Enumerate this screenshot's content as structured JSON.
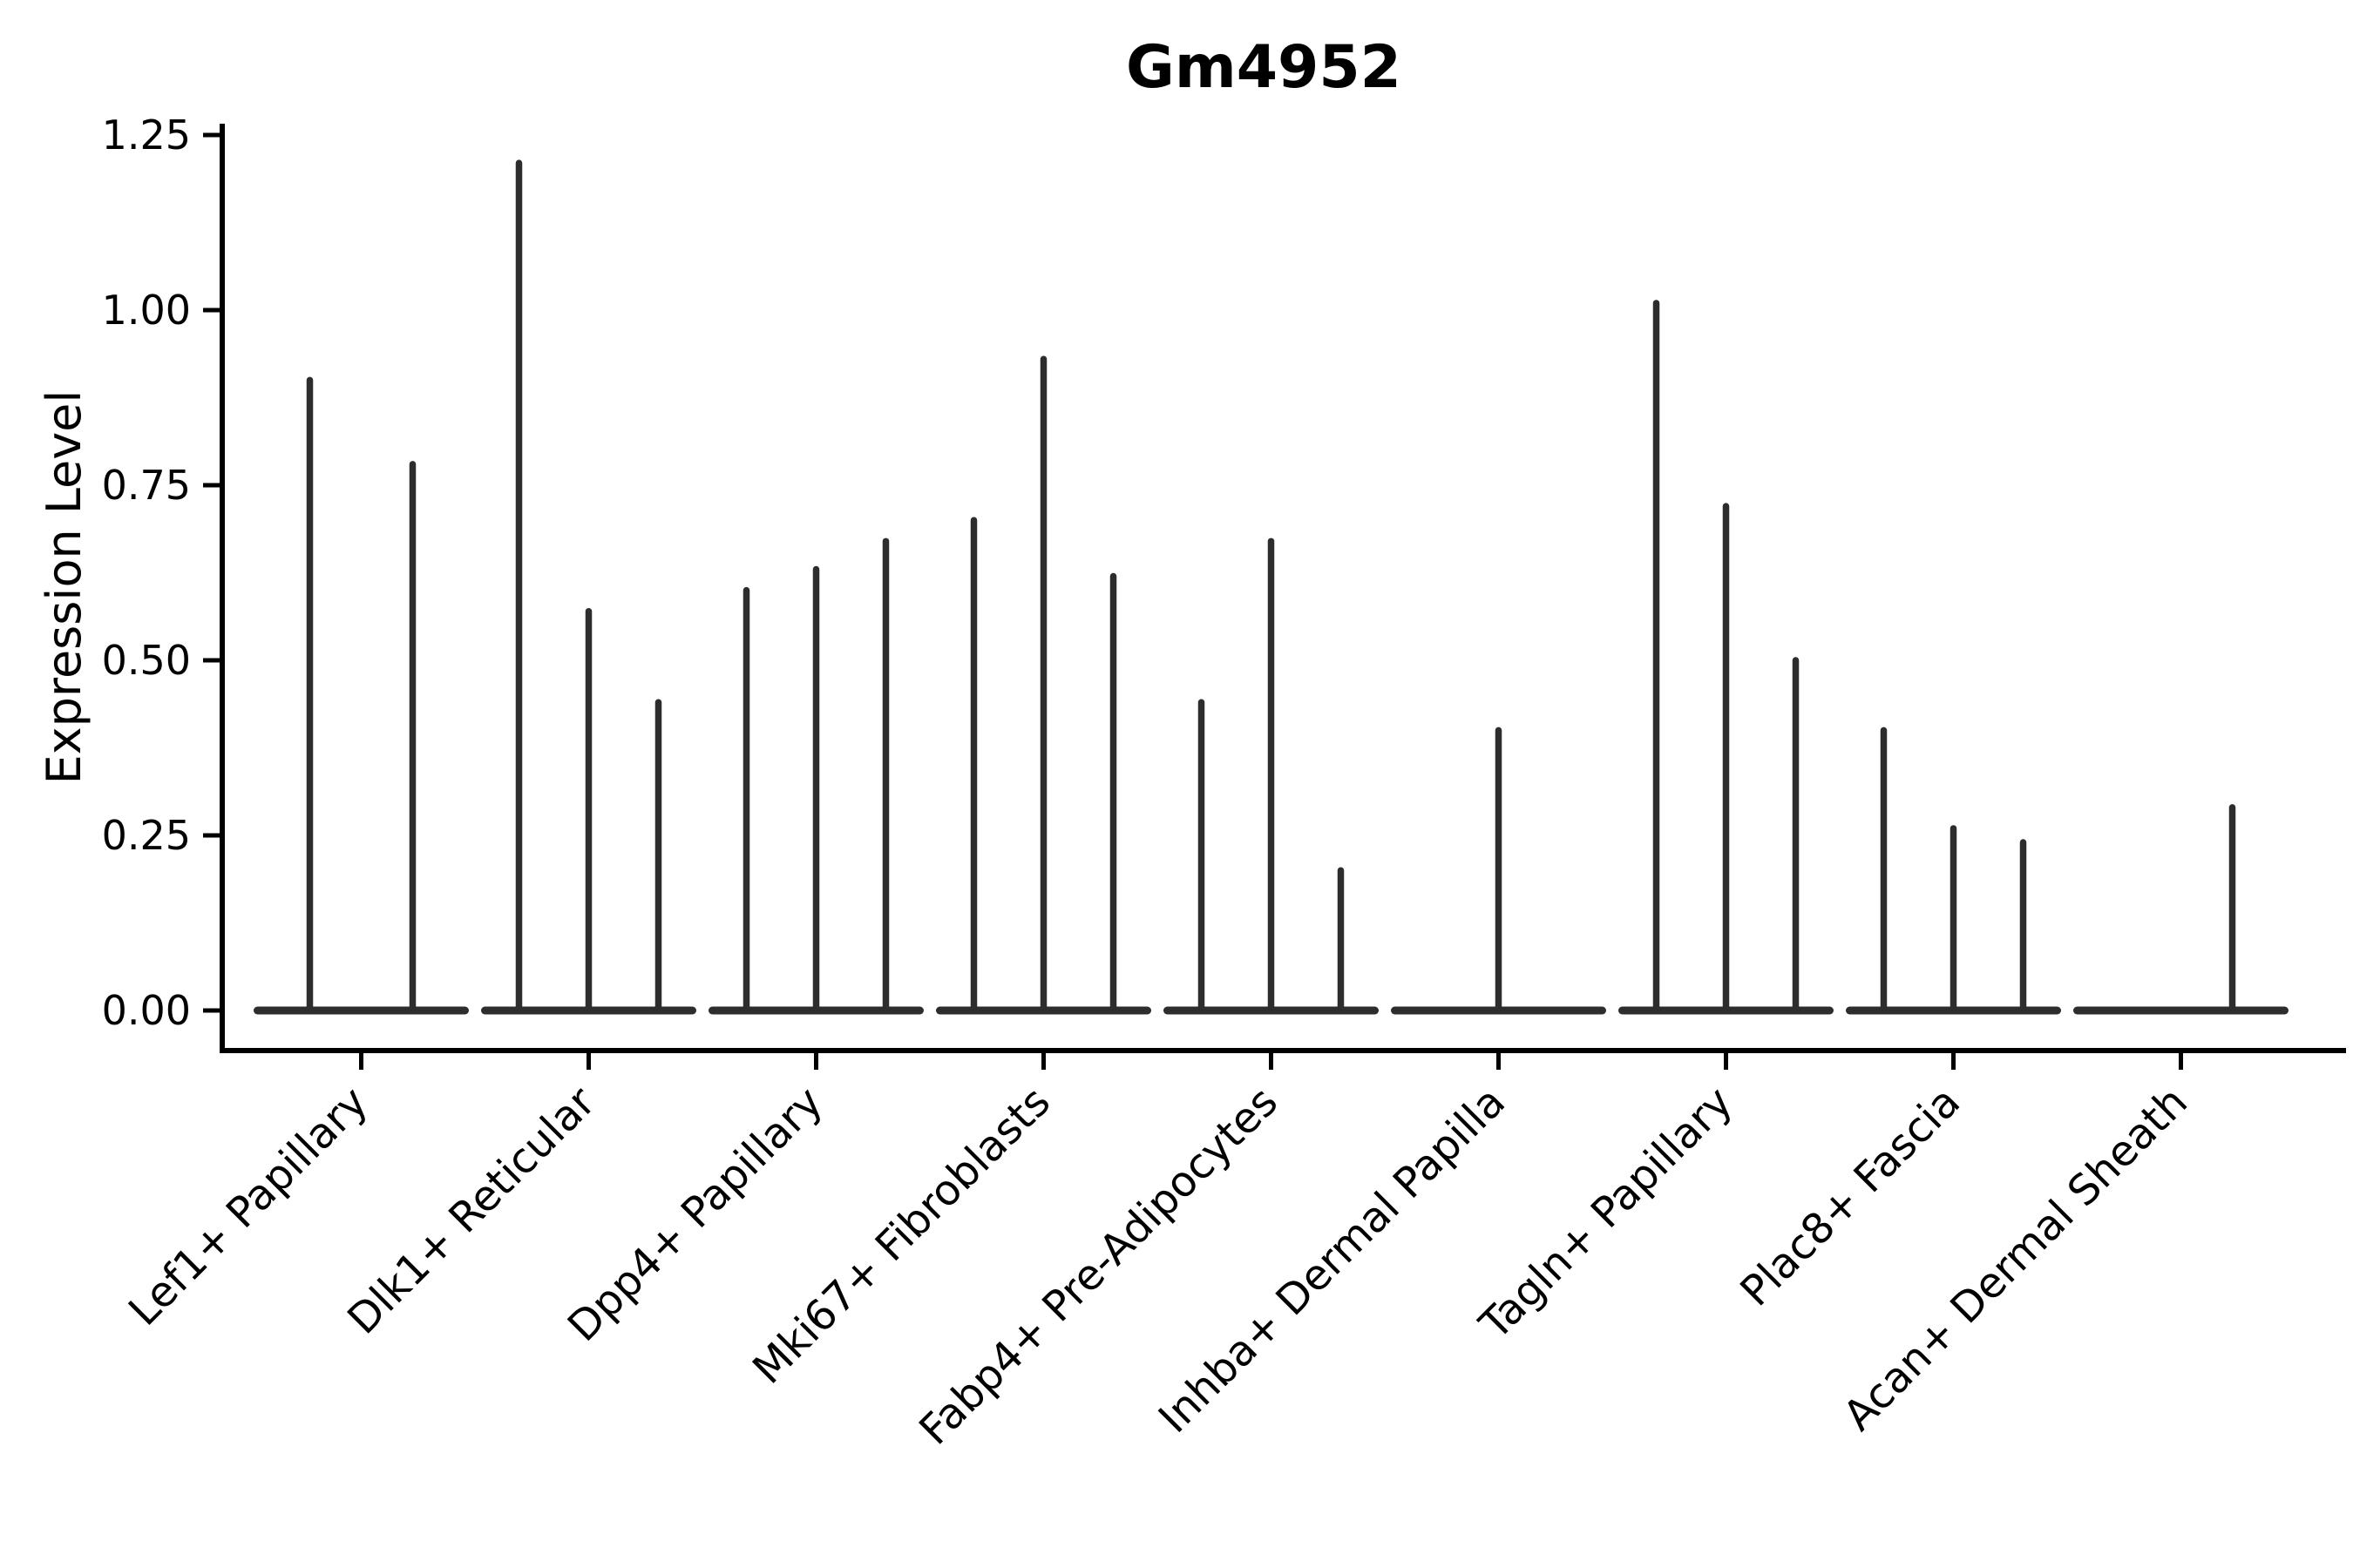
{
  "title": "Gm4952",
  "axes": {
    "ylabel": "Expression Level",
    "y_tick_labels": [
      "0.00",
      "0.25",
      "0.50",
      "0.75",
      "1.00",
      "1.25"
    ]
  },
  "colors": {
    "violin_line": "#2d2d2d",
    "axis_line": "#000000",
    "text": "#000000",
    "background": "#ffffff"
  },
  "chart_data": {
    "type": "violin",
    "title": "Gm4952",
    "xlabel": "",
    "ylabel": "Expression Level",
    "ylim": [
      0,
      1.25
    ],
    "y_ticks": [
      0,
      0.25,
      0.5,
      0.75,
      1.0,
      1.25
    ],
    "y_tick_labels": [
      "0.00",
      "0.25",
      "0.50",
      "0.75",
      "1.00",
      "1.25"
    ],
    "grid": false,
    "legend": "none",
    "description": "Violin plot of Gm4952 expression; each cell-type group shows 1-3 extremely narrow split violins (flat base at 0 with a thin spike up to the maximum expression value).",
    "categories": [
      "Lef1+ Papillary",
      "Dlk1+ Reticular",
      "Dpp4+ Papillary",
      "Mki67+ Fibroblasts",
      "Fabp4+ Pre-Adipocytes",
      "Inhba+ Dermal Papilla",
      "Tagln+ Papillary",
      "Plac8+ Fascia",
      "Acan+ Dermal Sheath"
    ],
    "groups": [
      {
        "label": "Lef1+ Papillary",
        "violins": [
          {
            "offset": -59,
            "max": 0.9
          },
          {
            "offset": 59,
            "max": 0.78
          }
        ]
      },
      {
        "label": "Dlk1+ Reticular",
        "violins": [
          {
            "offset": -80,
            "max": 1.21
          },
          {
            "offset": 0,
            "max": 0.57
          },
          {
            "offset": 80,
            "max": 0.44
          }
        ]
      },
      {
        "label": "Dpp4+ Papillary",
        "violins": [
          {
            "offset": -80,
            "max": 0.6
          },
          {
            "offset": 0,
            "max": 0.63
          },
          {
            "offset": 80,
            "max": 0.67
          }
        ]
      },
      {
        "label": "Mki67+ Fibroblasts",
        "violins": [
          {
            "offset": -80,
            "max": 0.7
          },
          {
            "offset": 0,
            "max": 0.93
          },
          {
            "offset": 80,
            "max": 0.62
          }
        ]
      },
      {
        "label": "Fabp4+ Pre-Adipocytes",
        "violins": [
          {
            "offset": -80,
            "max": 0.44
          },
          {
            "offset": 0,
            "max": 0.67
          },
          {
            "offset": 80,
            "max": 0.2
          }
        ]
      },
      {
        "label": "Inhba+ Dermal Papilla",
        "violins": [
          {
            "offset": 0,
            "max": 0.4
          }
        ]
      },
      {
        "label": "Tagln+ Papillary",
        "violins": [
          {
            "offset": -80,
            "max": 1.01
          },
          {
            "offset": 0,
            "max": 0.72
          },
          {
            "offset": 80,
            "max": 0.5
          }
        ]
      },
      {
        "label": "Plac8+ Fascia",
        "violins": [
          {
            "offset": -80,
            "max": 0.4
          },
          {
            "offset": 0,
            "max": 0.26
          },
          {
            "offset": 80,
            "max": 0.24
          }
        ]
      },
      {
        "label": "Acan+ Dermal Sheath",
        "violins": [
          {
            "offset": -59,
            "max": 0.0
          },
          {
            "offset": 59,
            "max": 0.29
          }
        ]
      }
    ]
  }
}
